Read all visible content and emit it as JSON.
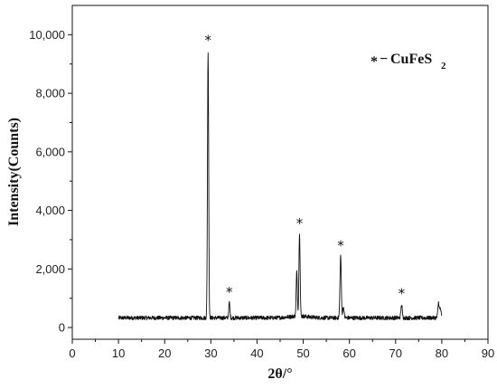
{
  "chart_data": {
    "type": "line",
    "title": "",
    "xlabel": "2θ/°",
    "ylabel": "Intensity(Counts)",
    "xlim": [
      0,
      90
    ],
    "ylim": [
      -400,
      11000
    ],
    "x_ticks": [
      0,
      10,
      20,
      30,
      40,
      50,
      60,
      70,
      80,
      90
    ],
    "x_tick_labels": [
      "0",
      "10",
      "20",
      "30",
      "40",
      "50",
      "60",
      "70",
      "80",
      "90"
    ],
    "y_ticks": [
      0,
      2000,
      4000,
      6000,
      8000,
      10000
    ],
    "y_tick_labels": [
      "0",
      "2,000",
      "4,000",
      "6,000",
      "8,000",
      "10,000"
    ],
    "grid": false,
    "legend": {
      "placement": "top-right",
      "marker": "*",
      "dash": "−",
      "label_main": "CuFeS",
      "label_sub": "2"
    },
    "series": [
      {
        "color": "#111111",
        "baseline": 330,
        "x_start": 10,
        "x_end": 80,
        "peaks": [
          {
            "x": 29.4,
            "y": 9450,
            "width": 0.18
          },
          {
            "x": 34.0,
            "y": 850,
            "width": 0.18
          },
          {
            "x": 48.6,
            "y": 1850,
            "width": 0.18
          },
          {
            "x": 49.2,
            "y": 3200,
            "width": 0.18
          },
          {
            "x": 58.1,
            "y": 2450,
            "width": 0.2
          },
          {
            "x": 58.7,
            "y": 700,
            "width": 0.2
          },
          {
            "x": 71.3,
            "y": 780,
            "width": 0.2
          },
          {
            "x": 79.3,
            "y": 850,
            "width": 0.2
          },
          {
            "x": 79.7,
            "y": 650,
            "width": 0.2
          }
        ]
      }
    ],
    "annotations": [
      {
        "text": "*",
        "x": 29.4,
        "y": 9650
      },
      {
        "text": "*",
        "x": 34.0,
        "y": 1050
      },
      {
        "text": "*",
        "x": 49.2,
        "y": 3400
      },
      {
        "text": "*",
        "x": 58.1,
        "y": 2650
      },
      {
        "text": "*",
        "x": 71.3,
        "y": 1000
      }
    ]
  }
}
